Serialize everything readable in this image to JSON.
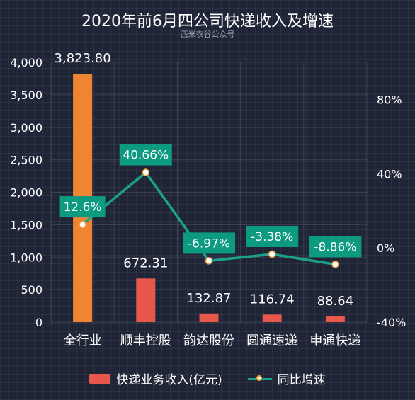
{
  "title": "2020年前6月四公司快递收入及增速",
  "subtitle": "西米衣谷公众号",
  "colors": {
    "background": "#1f2536",
    "bar_highlight": "#ef8532",
    "bar": "#e8574b",
    "line": "#1aa38a",
    "label_box": "#0c9a80",
    "axis_text": "#ffffff"
  },
  "legend": {
    "bar_label": "快递业务收入(亿元)",
    "line_label": "同比增速"
  },
  "chart_data": {
    "type": "bar",
    "title": "2020年前6月四公司快递收入及增速",
    "categories": [
      "全行业",
      "顺丰控股",
      "韵达股份",
      "圆通速递",
      "申通快递"
    ],
    "series": [
      {
        "name": "快递业务收入(亿元)",
        "type": "bar",
        "axis": "left",
        "values": [
          3823.8,
          672.31,
          132.87,
          116.74,
          88.64
        ],
        "value_labels": [
          "3,823.80",
          "672.31",
          "132.87",
          "116.74",
          "88.64"
        ]
      },
      {
        "name": "同比增速",
        "type": "line",
        "axis": "right",
        "values": [
          12.6,
          40.66,
          -6.97,
          -3.38,
          -8.86
        ],
        "value_labels": [
          "12.6%",
          "40.66%",
          "-6.97%",
          "-3.38%",
          "-8.86%"
        ]
      }
    ],
    "y_left": {
      "ylim": [
        0,
        4000
      ],
      "ticks": [
        0,
        500,
        1000,
        1500,
        2000,
        2500,
        3000,
        3500,
        4000
      ],
      "tick_labels": [
        "0",
        "500",
        "1,000",
        "1,500",
        "2,000",
        "2,500",
        "3,000",
        "3,500",
        "4,000"
      ]
    },
    "y_right": {
      "ylim": [
        -40,
        100
      ],
      "ticks": [
        -40,
        0,
        40,
        80
      ],
      "tick_labels": [
        "-40%",
        "0%",
        "40%",
        "80%"
      ]
    },
    "legend_position": "bottom-center",
    "grid": true
  }
}
